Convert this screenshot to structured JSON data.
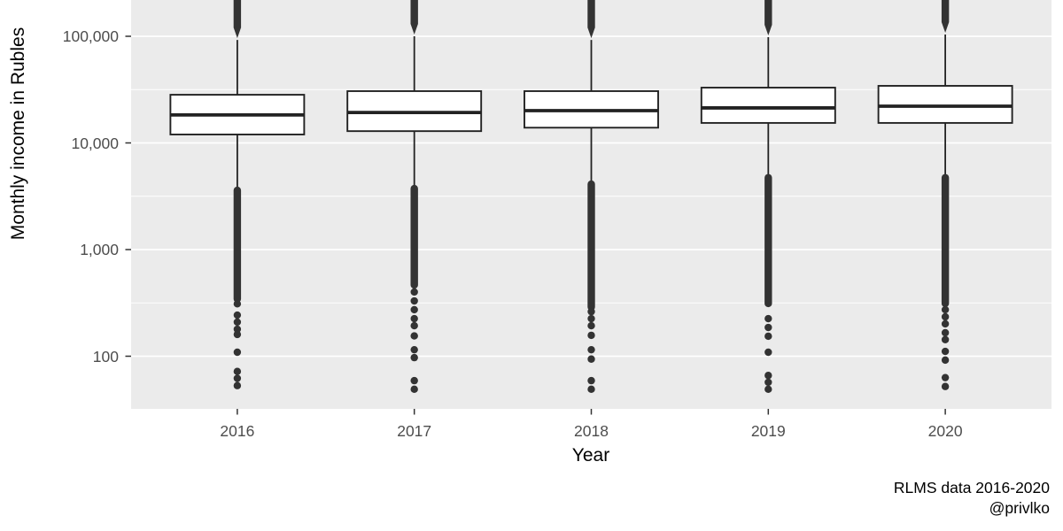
{
  "chart_data": {
    "type": "boxplot",
    "title": "",
    "xlabel": "Year",
    "ylabel": "Monthly income in Rubles",
    "caption": [
      "RLMS data 2016-2020",
      "@privlko"
    ],
    "y_scale": "log10",
    "y_axis": {
      "ticks": [
        100,
        1000,
        10000,
        100000
      ],
      "tick_labels": [
        "100",
        "1,000",
        "10,000",
        "100,000"
      ],
      "minor_gridlines": [
        316,
        3162,
        31623
      ],
      "visible_value_range_approx": [
        32,
        220000
      ],
      "top_clipped": true
    },
    "categories": [
      "2016",
      "2017",
      "2018",
      "2019",
      "2020"
    ],
    "legend": "none",
    "grid": true,
    "series": [
      {
        "category": "2016",
        "q1": 12000,
        "median": 18300,
        "q3": 28300,
        "whisker_low": 3800,
        "whisker_high": 96000,
        "outliers_low_dense": {
          "from": 3800,
          "to": 345
        },
        "outliers_low_points": [
          310,
          243,
          209,
          179,
          160,
          109,
          72,
          62,
          53
        ],
        "outliers_high_dense": {
          "from": 96000,
          "to_clipped": 220000
        }
      },
      {
        "category": "2017",
        "q1": 12900,
        "median": 19300,
        "q3": 30600,
        "whisker_low": 3950,
        "whisker_high": 104000,
        "outliers_low_dense": {
          "from": 3950,
          "to": 465
        },
        "outliers_low_points": [
          400,
          330,
          273,
          225,
          193,
          155,
          115,
          97,
          59,
          49
        ],
        "outliers_high_dense": {
          "from": 104000,
          "to_clipped": 220000
        }
      },
      {
        "category": "2018",
        "q1": 13900,
        "median": 20100,
        "q3": 30600,
        "whisker_low": 4350,
        "whisker_high": 96000,
        "outliers_low_dense": {
          "from": 4350,
          "to": 289
        },
        "outliers_low_points": [
          262,
          225,
          193,
          157,
          115,
          94,
          59,
          49
        ],
        "outliers_high_dense": {
          "from": 96000,
          "to_clipped": 220000
        }
      },
      {
        "category": "2019",
        "q1": 15400,
        "median": 21300,
        "q3": 33000,
        "whisker_low": 5000,
        "whisker_high": 102000,
        "outliers_low_dense": {
          "from": 5000,
          "to": 312
        },
        "outliers_low_points": [
          225,
          186,
          154,
          109,
          66,
          57,
          49
        ],
        "outliers_high_dense": {
          "from": 102000,
          "to_clipped": 220000
        }
      },
      {
        "category": "2020",
        "q1": 15400,
        "median": 22100,
        "q3": 34300,
        "whisker_low": 5000,
        "whisker_high": 108000,
        "outliers_low_dense": {
          "from": 5000,
          "to": 312
        },
        "outliers_low_points": [
          273,
          234,
          201,
          166,
          143,
          111,
          92,
          63,
          52
        ],
        "outliers_high_dense": {
          "from": 108000,
          "to_clipped": 220000
        }
      }
    ]
  },
  "style": {
    "background": "#FFFFFF",
    "panel_bg": "#EBEBEB",
    "gridline": "#FFFFFF",
    "box_fill": "#FFFFFF",
    "box_stroke": "#222222",
    "outlier_color": "#333333",
    "tick_color": "#333333",
    "axis_text": "#4D4D4D",
    "title_color": "#000000"
  }
}
